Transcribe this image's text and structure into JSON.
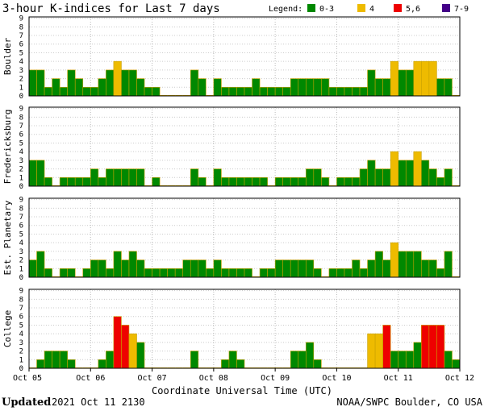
{
  "title": "3-hour K-indices for Last 7 days",
  "legend": {
    "label": "Legend:",
    "items": [
      {
        "label": "0-3",
        "color": "#008800"
      },
      {
        "label": "4",
        "color": "#eebb00"
      },
      {
        "label": "5,6",
        "color": "#ee0000"
      },
      {
        "label": "7-9",
        "color": "#440088"
      }
    ]
  },
  "xlabel": "Coordinate Universal Time (UTC)",
  "footer": {
    "updated_word": "Updated",
    "updated_value": "2021 Oct 11 2130",
    "credit": "NOAA/SWPC Boulder, CO USA"
  },
  "chart_data": {
    "type": "bar",
    "x_ticks": [
      "Oct 05",
      "Oct 06",
      "Oct 07",
      "Oct 08",
      "Oct 09",
      "Oct 10",
      "Oct 11",
      "Oct 12"
    ],
    "y_ticks": [
      "0",
      "1",
      "2",
      "3",
      "4",
      "5",
      "6",
      "7",
      "8",
      "9"
    ],
    "ylim": [
      0,
      9
    ],
    "bars_per_day": 8,
    "grid": true,
    "panels": [
      {
        "name": "Boulder",
        "values": [
          3,
          3,
          1,
          2,
          1,
          3,
          2,
          1,
          1,
          2,
          3,
          4,
          3,
          3,
          2,
          1,
          1,
          0,
          0,
          0,
          0,
          3,
          2,
          0,
          2,
          1,
          1,
          1,
          1,
          2,
          1,
          1,
          1,
          1,
          2,
          2,
          2,
          2,
          2,
          1,
          1,
          1,
          1,
          1,
          3,
          2,
          2,
          4,
          3,
          3,
          4,
          4,
          4,
          2,
          2,
          0
        ]
      },
      {
        "name": "Fredericksburg",
        "values": [
          3,
          3,
          1,
          0,
          1,
          1,
          1,
          1,
          2,
          1,
          2,
          2,
          2,
          2,
          2,
          0,
          1,
          0,
          0,
          0,
          0,
          2,
          1,
          0,
          2,
          1,
          1,
          1,
          1,
          1,
          1,
          0,
          1,
          1,
          1,
          1,
          2,
          2,
          1,
          0,
          1,
          1,
          1,
          2,
          3,
          2,
          2,
          4,
          3,
          3,
          4,
          3,
          2,
          1,
          2,
          0
        ]
      },
      {
        "name": "Est. Planetary",
        "values": [
          2,
          3,
          1,
          0,
          1,
          1,
          0,
          1,
          2,
          2,
          1,
          3,
          2,
          3,
          2,
          1,
          1,
          1,
          1,
          1,
          2,
          2,
          2,
          1,
          2,
          1,
          1,
          1,
          1,
          0,
          1,
          1,
          2,
          2,
          2,
          2,
          2,
          1,
          0,
          1,
          1,
          1,
          2,
          1,
          2,
          3,
          2,
          4,
          3,
          3,
          3,
          2,
          2,
          1,
          3,
          0
        ]
      },
      {
        "name": "College",
        "values": [
          0,
          1,
          2,
          2,
          2,
          1,
          0,
          0,
          0,
          1,
          2,
          6,
          5,
          4,
          3,
          0,
          0,
          0,
          0,
          0,
          0,
          2,
          0,
          0,
          0,
          1,
          2,
          1,
          0,
          0,
          0,
          0,
          0,
          0,
          2,
          2,
          3,
          1,
          0,
          0,
          0,
          0,
          0,
          0,
          4,
          4,
          5,
          2,
          2,
          2,
          3,
          5,
          5,
          5,
          2,
          1
        ]
      }
    ]
  }
}
